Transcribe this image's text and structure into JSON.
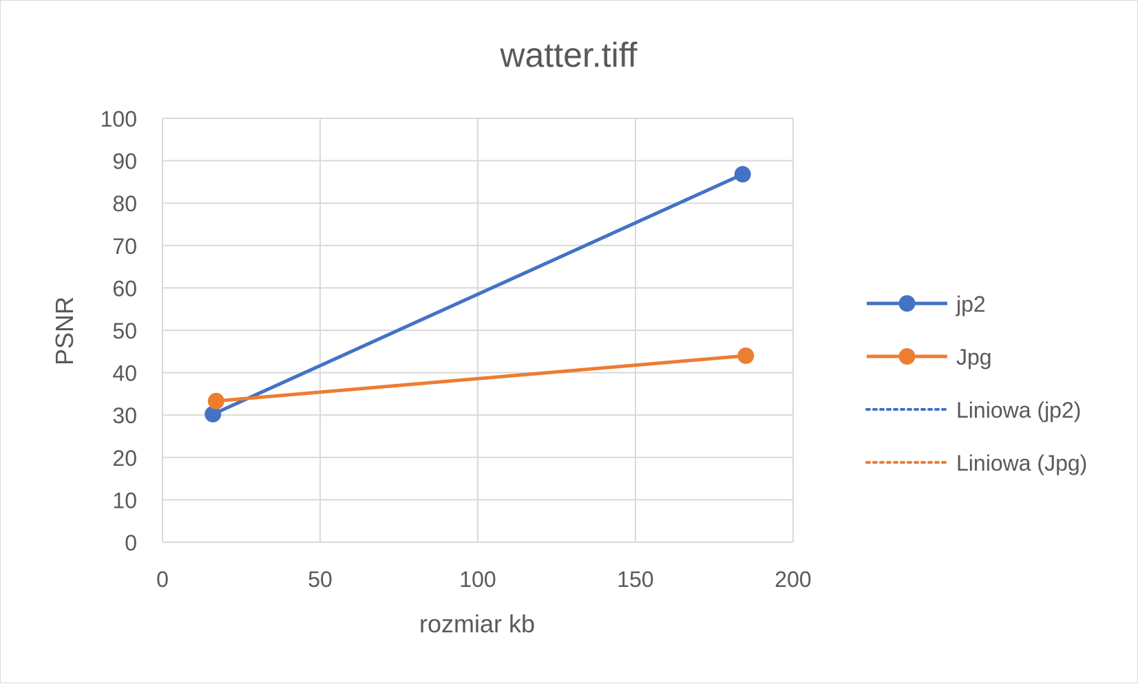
{
  "chart_data": {
    "type": "scatter",
    "title": "watter.tiff",
    "xlabel": "rozmiar kb",
    "ylabel": "PSNR",
    "xlim": [
      0,
      200
    ],
    "ylim": [
      0,
      100
    ],
    "xticks": [
      0,
      50,
      100,
      150,
      200
    ],
    "yticks": [
      0,
      10,
      20,
      30,
      40,
      50,
      60,
      70,
      80,
      90,
      100
    ],
    "grid": true,
    "legend_position": "right",
    "series": [
      {
        "name": "jp2",
        "color": "#4472C4",
        "points": [
          [
            16,
            30.2
          ],
          [
            184,
            86.8
          ]
        ]
      },
      {
        "name": "Jpg",
        "color": "#ED7D31",
        "points": [
          [
            17,
            33.3
          ],
          [
            185,
            44.0
          ]
        ]
      }
    ],
    "legend": [
      {
        "label": "jp2",
        "color": "#4472C4",
        "style": "line-marker"
      },
      {
        "label": "Jpg",
        "color": "#ED7D31",
        "style": "line-marker"
      },
      {
        "label": "Liniowa (jp2)",
        "color": "#4472C4",
        "style": "dotted"
      },
      {
        "label": "Liniowa (Jpg)",
        "color": "#ED7D31",
        "style": "dotted"
      }
    ]
  }
}
